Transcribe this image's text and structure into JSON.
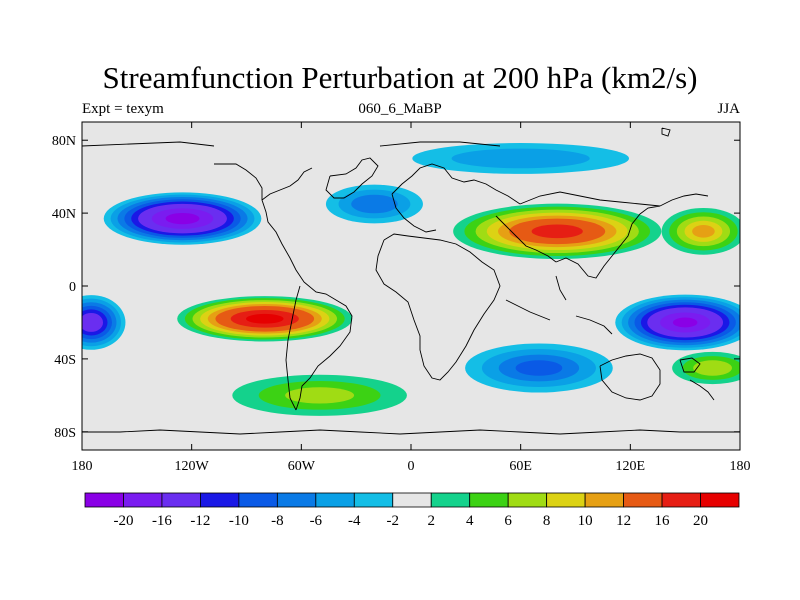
{
  "title": "Streamfunction Perturbation at 200 hPa (km2/s)",
  "subtitle_left": "Expt = texym",
  "subtitle_center": "060_6_MaBP",
  "subtitle_right": "JJA",
  "map": {
    "projection": "cylindrical-equidistant",
    "lon_range": [
      -180,
      180
    ],
    "lat_range": [
      -90,
      90
    ],
    "background_color": "#e6e6e6",
    "coastline_color": "#000000",
    "x_ticks": [
      {
        "value": -180,
        "label": "180"
      },
      {
        "value": -120,
        "label": "120W"
      },
      {
        "value": -60,
        "label": "60W"
      },
      {
        "value": 0,
        "label": "0"
      },
      {
        "value": 60,
        "label": "60E"
      },
      {
        "value": 120,
        "label": "120E"
      },
      {
        "value": 180,
        "label": "180"
      }
    ],
    "y_ticks": [
      {
        "value": 80,
        "label": "80N"
      },
      {
        "value": 40,
        "label": "40N"
      },
      {
        "value": 0,
        "label": "0"
      },
      {
        "value": -40,
        "label": "40S"
      },
      {
        "value": -80,
        "label": "80S"
      }
    ],
    "field_features": [
      {
        "lon": -125,
        "lat": 37,
        "value": -21,
        "r_lon": 45,
        "r_lat": 15
      },
      {
        "lon": -80,
        "lat": -18,
        "value": 21,
        "r_lon": 50,
        "r_lat": 13
      },
      {
        "lon": 80,
        "lat": 30,
        "value": 17,
        "r_lon": 60,
        "r_lat": 16
      },
      {
        "lon": 150,
        "lat": -20,
        "value": -20,
        "r_lon": 40,
        "r_lat": 16
      },
      {
        "lon": 70,
        "lat": -45,
        "value": -8,
        "r_lon": 45,
        "r_lat": 15
      },
      {
        "lon": -20,
        "lat": 45,
        "value": -7,
        "r_lon": 30,
        "r_lat": 12
      },
      {
        "lon": -50,
        "lat": -60,
        "value": 6,
        "r_lon": 55,
        "r_lat": 13
      },
      {
        "lon": 165,
        "lat": -45,
        "value": 7,
        "r_lon": 25,
        "r_lat": 10
      },
      {
        "lon": 60,
        "lat": 70,
        "value": -5,
        "r_lon": 70,
        "r_lat": 10
      },
      {
        "lon": -175,
        "lat": -20,
        "value": -14,
        "r_lon": 20,
        "r_lat": 16
      },
      {
        "lon": 160,
        "lat": 30,
        "value": 10,
        "r_lon": 25,
        "r_lat": 14
      }
    ]
  },
  "colorbar": {
    "levels": [
      "-20",
      "-16",
      "-12",
      "-10",
      "-8",
      "-6",
      "-4",
      "-2",
      "2",
      "4",
      "6",
      "8",
      "10",
      "12",
      "16",
      "20"
    ],
    "level_values": [
      -20,
      -16,
      -12,
      -10,
      -8,
      -6,
      -4,
      -2,
      2,
      4,
      6,
      8,
      10,
      12,
      16,
      20
    ],
    "colors": [
      "#8a00e6",
      "#7a1cf0",
      "#6a2ef0",
      "#1a18e6",
      "#0a5ae6",
      "#0a7ae6",
      "#0aa0e6",
      "#14bee6",
      "#e6e6e6",
      "#14d28c",
      "#3cd214",
      "#a0dc14",
      "#dcd214",
      "#e6a014",
      "#e65a14",
      "#e61e14",
      "#e60000"
    ]
  }
}
